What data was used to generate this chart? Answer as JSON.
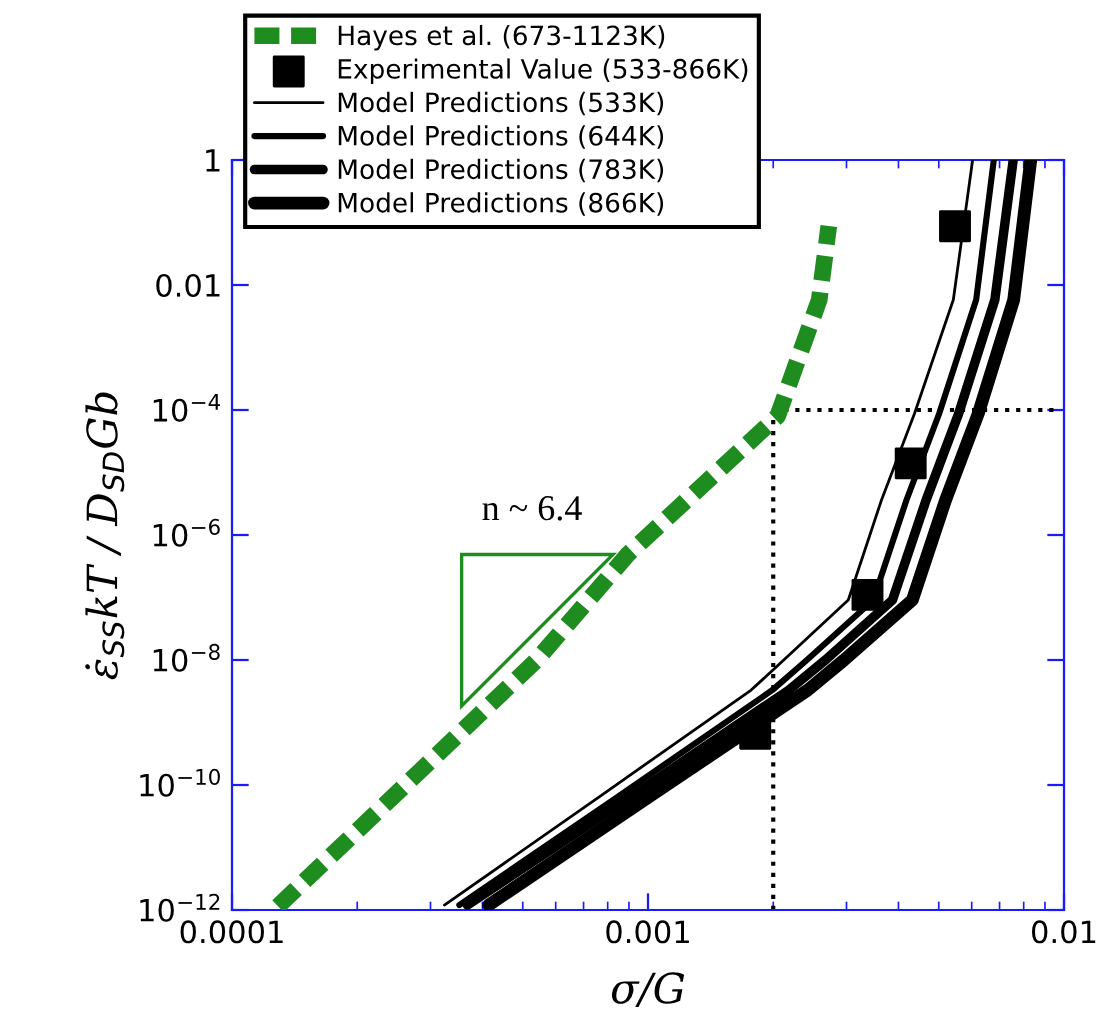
{
  "chart_data": {
    "type": "line",
    "xlabel": "σ/G",
    "ylabel": "ε̇$_{SS}$kT / D$_{SD}$Gb",
    "log": "xy",
    "xlim": [
      0.0001,
      0.01
    ],
    "ylim": [
      1e-12,
      1
    ],
    "xticks": [
      0.0001,
      0.001,
      0.01
    ],
    "yticks": [
      {
        "value": 1e-12,
        "label": "10$^{−12}$"
      },
      {
        "value": 1e-10,
        "label": "10$^{−10}$"
      },
      {
        "value": 1e-08,
        "label": "10$^{−8}$"
      },
      {
        "value": 1e-06,
        "label": "10$^{−6}$"
      },
      {
        "value": 0.0001,
        "label": "10$^{−4}$"
      },
      0.01,
      1
    ],
    "grid": false,
    "legend": "top left",
    "series": [
      {
        "name": "Hayes et al. (673-1123K)",
        "color": "#1e8c1e",
        "line_style": "dashed",
        "marker": "none",
        "x": [
          0.000129,
          0.00054,
          0.000897,
          0.00205,
          0.00258,
          0.00272
        ],
        "values": [
          1.15e-12,
          1e-08,
          5e-07,
          8e-05,
          0.0058,
          0.088
        ]
      },
      {
        "name": "Experimental Value (533-866K)",
        "type": "scatter",
        "color": "#000000",
        "marker": "square",
        "x": [
          0.00181,
          0.00337,
          0.00428,
          0.00547
        ],
        "values": [
          6.6e-10,
          1.1e-07,
          1.4e-05,
          0.087
        ]
      },
      {
        "name": "Model Predictions (533K)",
        "color": "#000000",
        "line_style": "solid",
        "marker": "none",
        "x": [
          0.000324,
          0.000759,
          0.00177,
          0.00212,
          0.00303,
          0.00364,
          0.00437,
          0.00542,
          0.00603
        ],
        "values": [
          1.2e-12,
          6.3e-11,
          3.3e-09,
          1e-08,
          9.1e-08,
          3.6e-06,
          8.7e-05,
          0.0058,
          1
        ]
      },
      {
        "name": "Model Predictions (644K)",
        "color": "#000000",
        "line_style": "solid",
        "marker": "none",
        "x": [
          0.000352,
          0.000841,
          0.00199,
          0.00241,
          0.00348,
          0.00418,
          0.00501,
          0.00615,
          0.00678
        ],
        "values": [
          1.2e-12,
          6.3e-11,
          3.3e-09,
          1e-08,
          9.1e-08,
          3.6e-06,
          8.7e-05,
          0.0058,
          1
        ]
      },
      {
        "name": "Model Predictions (783K)",
        "color": "#000000",
        "line_style": "solid",
        "marker": "none",
        "x": [
          0.000368,
          0.000902,
          0.00218,
          0.00267,
          0.00387,
          0.00466,
          0.00558,
          0.00682,
          0.00755
        ],
        "values": [
          1.2e-12,
          6.3e-11,
          3.3e-09,
          1e-08,
          9.1e-08,
          3.6e-06,
          8.7e-05,
          0.0058,
          1
        ]
      },
      {
        "name": "Model Predictions (866K)",
        "color": "#000000",
        "line_style": "solid",
        "marker": "none",
        "x": [
          0.000414,
          0.001,
          0.00242,
          0.00296,
          0.00432,
          0.00519,
          0.00622,
          0.00757,
          0.00832
        ],
        "values": [
          1.2e-12,
          6.3e-11,
          3.3e-09,
          1e-08,
          9.1e-08,
          3.6e-06,
          8.7e-05,
          0.0058,
          1
        ]
      }
    ],
    "ref_lines": [
      {
        "axis": "x",
        "value": 0.002,
        "line_style": "dotted",
        "color": "#000000"
      },
      {
        "axis": "y",
        "value": 0.0001,
        "line_style": "dotted",
        "color": "#000000"
      }
    ],
    "annotations": [
      "n ~ 6.4"
    ]
  }
}
